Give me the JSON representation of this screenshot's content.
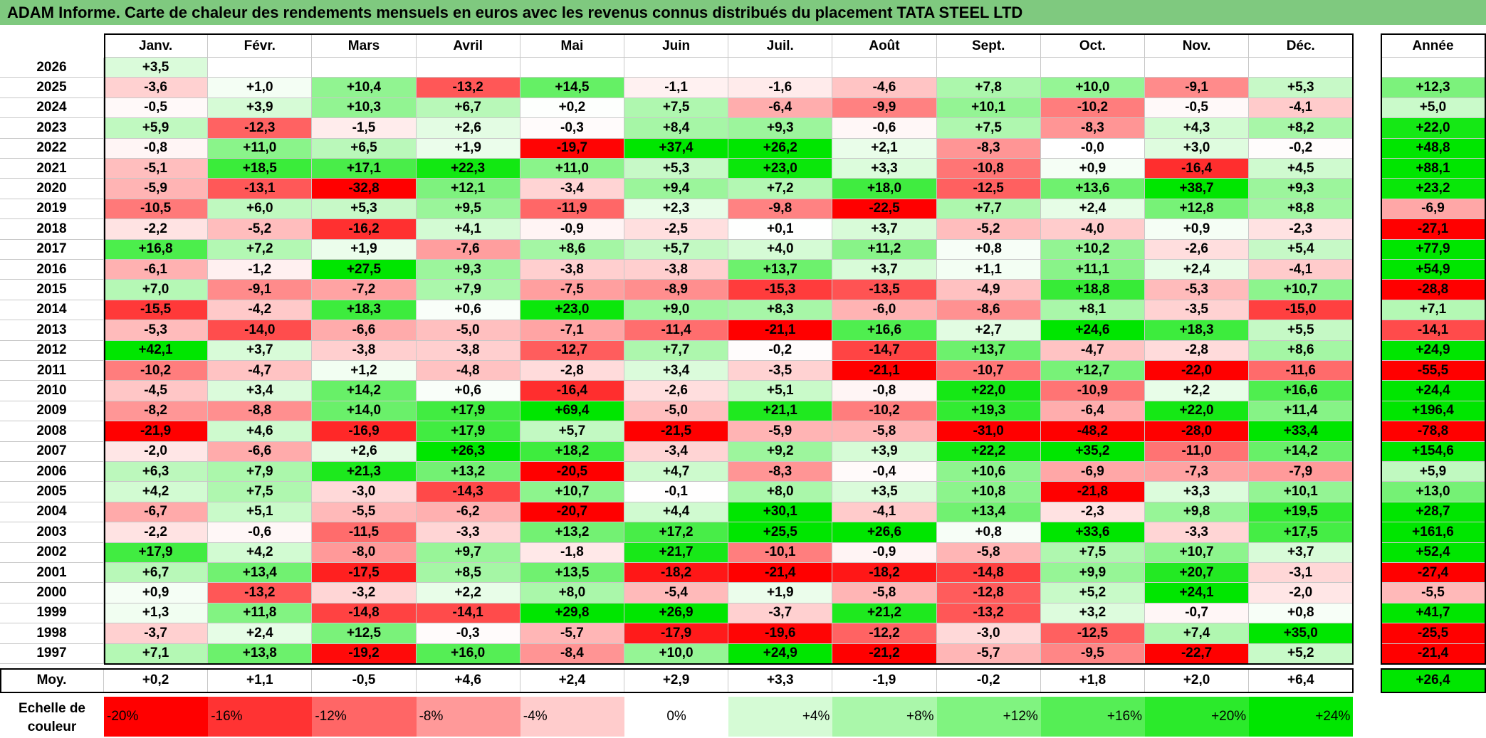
{
  "title": "ADAM Informe. Carte de chaleur des rendements mensuels en euros avec les revenus connus distribués du placement TATA STEEL LTD",
  "chart_data": {
    "type": "heatmap",
    "months": [
      "Janv.",
      "Févr.",
      "Mars",
      "Avril",
      "Mai",
      "Juin",
      "Juil.",
      "Août",
      "Sept.",
      "Oct.",
      "Nov.",
      "Déc."
    ],
    "year_header": "Année",
    "rows": [
      {
        "year": "2026",
        "months": [
          "+3,5",
          "",
          "",
          "",
          "",
          "",
          "",
          "",
          "",
          "",
          "",
          ""
        ],
        "annual": ""
      },
      {
        "year": "2025",
        "months": [
          "-3,6",
          "+1,0",
          "+10,4",
          "-13,2",
          "+14,5",
          "-1,1",
          "-1,6",
          "-4,6",
          "+7,8",
          "+10,0",
          "-9,1",
          "+5,3"
        ],
        "annual": "+12,3"
      },
      {
        "year": "2024",
        "months": [
          "-0,5",
          "+3,9",
          "+10,3",
          "+6,7",
          "+0,2",
          "+7,5",
          "-6,4",
          "-9,9",
          "+10,1",
          "-10,2",
          "-0,5",
          "-4,1"
        ],
        "annual": "+5,0"
      },
      {
        "year": "2023",
        "months": [
          "+5,9",
          "-12,3",
          "-1,5",
          "+2,6",
          "-0,3",
          "+8,4",
          "+9,3",
          "-0,6",
          "+7,5",
          "-8,3",
          "+4,3",
          "+8,2"
        ],
        "annual": "+22,0"
      },
      {
        "year": "2022",
        "months": [
          "-0,8",
          "+11,0",
          "+6,5",
          "+1,9",
          "-19,7",
          "+37,4",
          "+26,2",
          "+2,1",
          "-8,3",
          "-0,0",
          "+3,0",
          "-0,2"
        ],
        "annual": "+48,8"
      },
      {
        "year": "2021",
        "months": [
          "-5,1",
          "+18,5",
          "+17,1",
          "+22,3",
          "+11,0",
          "+5,3",
          "+23,0",
          "+3,3",
          "-10,8",
          "+0,9",
          "-16,4",
          "+4,5"
        ],
        "annual": "+88,1"
      },
      {
        "year": "2020",
        "months": [
          "-5,9",
          "-13,1",
          "-32,8",
          "+12,1",
          "-3,4",
          "+9,4",
          "+7,2",
          "+18,0",
          "-12,5",
          "+13,6",
          "+38,7",
          "+9,3"
        ],
        "annual": "+23,2"
      },
      {
        "year": "2019",
        "months": [
          "-10,5",
          "+6,0",
          "+5,3",
          "+9,5",
          "-11,9",
          "+2,3",
          "-9,8",
          "-22,5",
          "+7,7",
          "+2,4",
          "+12,8",
          "+8,8"
        ],
        "annual": "-6,9"
      },
      {
        "year": "2018",
        "months": [
          "-2,2",
          "-5,2",
          "-16,2",
          "+4,1",
          "-0,9",
          "-2,5",
          "+0,1",
          "+3,7",
          "-5,2",
          "-4,0",
          "+0,9",
          "-2,3"
        ],
        "annual": "-27,1"
      },
      {
        "year": "2017",
        "months": [
          "+16,8",
          "+7,2",
          "+1,9",
          "-7,6",
          "+8,6",
          "+5,7",
          "+4,0",
          "+11,2",
          "+0,8",
          "+10,2",
          "-2,6",
          "+5,4"
        ],
        "annual": "+77,9"
      },
      {
        "year": "2016",
        "months": [
          "-6,1",
          "-1,2",
          "+27,5",
          "+9,3",
          "-3,8",
          "-3,8",
          "+13,7",
          "+3,7",
          "+1,1",
          "+11,1",
          "+2,4",
          "-4,1"
        ],
        "annual": "+54,9"
      },
      {
        "year": "2015",
        "months": [
          "+7,0",
          "-9,1",
          "-7,2",
          "+7,9",
          "-7,5",
          "-8,9",
          "-15,3",
          "-13,5",
          "-4,9",
          "+18,8",
          "-5,3",
          "+10,7"
        ],
        "annual": "-28,8"
      },
      {
        "year": "2014",
        "months": [
          "-15,5",
          "-4,2",
          "+18,3",
          "+0,6",
          "+23,0",
          "+9,0",
          "+8,3",
          "-6,0",
          "-8,6",
          "+8,1",
          "-3,5",
          "-15,0"
        ],
        "annual": "+7,1"
      },
      {
        "year": "2013",
        "months": [
          "-5,3",
          "-14,0",
          "-6,6",
          "-5,0",
          "-7,1",
          "-11,4",
          "-21,1",
          "+16,6",
          "+2,7",
          "+24,6",
          "+18,3",
          "+5,5"
        ],
        "annual": "-14,1"
      },
      {
        "year": "2012",
        "months": [
          "+42,1",
          "+3,7",
          "-3,8",
          "-3,8",
          "-12,7",
          "+7,7",
          "-0,2",
          "-14,7",
          "+13,7",
          "-4,7",
          "-2,8",
          "+8,6"
        ],
        "annual": "+24,9"
      },
      {
        "year": "2011",
        "months": [
          "-10,2",
          "-4,7",
          "+1,2",
          "-4,8",
          "-2,8",
          "+3,4",
          "-3,5",
          "-21,1",
          "-10,7",
          "+12,7",
          "-22,0",
          "-11,6"
        ],
        "annual": "-55,5"
      },
      {
        "year": "2010",
        "months": [
          "-4,5",
          "+3,4",
          "+14,2",
          "+0,6",
          "-16,4",
          "-2,6",
          "+5,1",
          "-0,8",
          "+22,0",
          "-10,9",
          "+2,2",
          "+16,6"
        ],
        "annual": "+24,4"
      },
      {
        "year": "2009",
        "months": [
          "-8,2",
          "-8,8",
          "+14,0",
          "+17,9",
          "+69,4",
          "-5,0",
          "+21,1",
          "-10,2",
          "+19,3",
          "-6,4",
          "+22,0",
          "+11,4"
        ],
        "annual": "+196,4"
      },
      {
        "year": "2008",
        "months": [
          "-21,9",
          "+4,6",
          "-16,9",
          "+17,9",
          "+5,7",
          "-21,5",
          "-5,9",
          "-5,8",
          "-31,0",
          "-48,2",
          "-28,0",
          "+33,4"
        ],
        "annual": "-78,8"
      },
      {
        "year": "2007",
        "months": [
          "-2,0",
          "-6,6",
          "+2,6",
          "+26,3",
          "+18,2",
          "-3,4",
          "+9,2",
          "+3,9",
          "+22,2",
          "+35,2",
          "-11,0",
          "+14,2"
        ],
        "annual": "+154,6"
      },
      {
        "year": "2006",
        "months": [
          "+6,3",
          "+7,9",
          "+21,3",
          "+13,2",
          "-20,5",
          "+4,7",
          "-8,3",
          "-0,4",
          "+10,6",
          "-6,9",
          "-7,3",
          "-7,9"
        ],
        "annual": "+5,9"
      },
      {
        "year": "2005",
        "months": [
          "+4,2",
          "+7,5",
          "-3,0",
          "-14,3",
          "+10,7",
          "-0,1",
          "+8,0",
          "+3,5",
          "+10,8",
          "-21,8",
          "+3,3",
          "+10,1"
        ],
        "annual": "+13,0"
      },
      {
        "year": "2004",
        "months": [
          "-6,7",
          "+5,1",
          "-5,5",
          "-6,2",
          "-20,7",
          "+4,4",
          "+30,1",
          "-4,1",
          "+13,4",
          "-2,3",
          "+9,8",
          "+19,5"
        ],
        "annual": "+28,7"
      },
      {
        "year": "2003",
        "months": [
          "-2,2",
          "-0,6",
          "-11,5",
          "-3,3",
          "+13,2",
          "+17,2",
          "+25,5",
          "+26,6",
          "+0,8",
          "+33,6",
          "-3,3",
          "+17,5"
        ],
        "annual": "+161,6"
      },
      {
        "year": "2002",
        "months": [
          "+17,9",
          "+4,2",
          "-8,0",
          "+9,7",
          "-1,8",
          "+21,7",
          "-10,1",
          "-0,9",
          "-5,8",
          "+7,5",
          "+10,7",
          "+3,7"
        ],
        "annual": "+52,4"
      },
      {
        "year": "2001",
        "months": [
          "+6,7",
          "+13,4",
          "-17,5",
          "+8,5",
          "+13,5",
          "-18,2",
          "-21,4",
          "-18,2",
          "-14,8",
          "+9,9",
          "+20,7",
          "-3,1"
        ],
        "annual": "-27,4"
      },
      {
        "year": "2000",
        "months": [
          "+0,9",
          "-13,2",
          "-3,2",
          "+2,2",
          "+8,0",
          "-5,4",
          "+1,9",
          "-5,8",
          "-12,8",
          "+5,2",
          "+24,1",
          "-2,0"
        ],
        "annual": "-5,5"
      },
      {
        "year": "1999",
        "months": [
          "+1,3",
          "+11,8",
          "-14,8",
          "-14,1",
          "+29,8",
          "+26,9",
          "-3,7",
          "+21,2",
          "-13,2",
          "+3,2",
          "-0,7",
          "+0,8"
        ],
        "annual": "+41,7"
      },
      {
        "year": "1998",
        "months": [
          "-3,7",
          "+2,4",
          "+12,5",
          "-0,3",
          "-5,7",
          "-17,9",
          "-19,6",
          "-12,2",
          "-3,0",
          "-12,5",
          "+7,4",
          "+35,0"
        ],
        "annual": "-25,5"
      },
      {
        "year": "1997",
        "months": [
          "+7,1",
          "+13,8",
          "-19,2",
          "+16,0",
          "-8,4",
          "+10,0",
          "+24,9",
          "-21,2",
          "-5,7",
          "-9,5",
          "-22,7",
          "+5,2"
        ],
        "annual": "-21,4"
      }
    ],
    "average": {
      "label": "Moy.",
      "months": [
        "+0,2",
        "+1,1",
        "-0,5",
        "+4,6",
        "+2,4",
        "+2,9",
        "+3,3",
        "-1,9",
        "-0,2",
        "+1,8",
        "+2,0",
        "+6,4"
      ],
      "annual": "+26,4"
    },
    "scale": {
      "label": "Echelle de couleur",
      "steps": [
        "-20%",
        "-16%",
        "-12%",
        "-8%",
        "-4%",
        "0%",
        "+4%",
        "+8%",
        "+12%",
        "+16%",
        "+20%",
        "+24%"
      ]
    }
  }
}
